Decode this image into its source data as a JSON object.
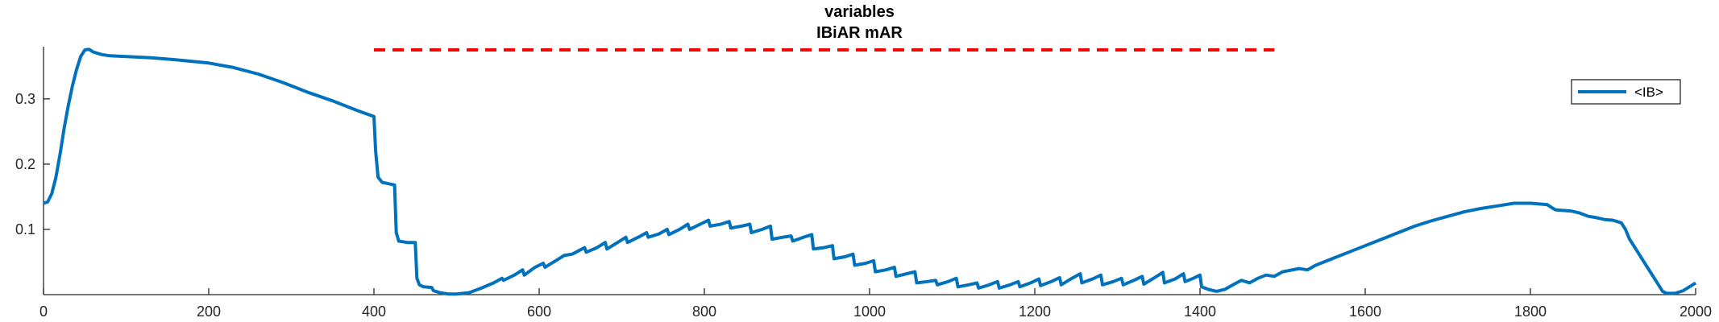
{
  "chart_data": {
    "type": "line",
    "title_lines": [
      "variables",
      "IBiAR mAR"
    ],
    "xlabel": "",
    "ylabel": "",
    "xlim": [
      0,
      2000
    ],
    "ylim": [
      0,
      0.38
    ],
    "x_ticks": [
      0,
      200,
      400,
      600,
      800,
      1000,
      1200,
      1400,
      1600,
      1800,
      2000
    ],
    "y_ticks": [
      0.1,
      0.2,
      0.3
    ],
    "x_tick_labels": [
      "0",
      "200",
      "400",
      "600",
      "800",
      "1000",
      "1200",
      "1400",
      "1600",
      "1800",
      "2000"
    ],
    "y_tick_labels": [
      "0.1",
      "0.2",
      "0.3"
    ],
    "grid": false,
    "legend_position": "top-right",
    "series": [
      {
        "name": "<IB>",
        "color": "#0072BD",
        "style": "solid",
        "points": [
          [
            0,
            0.14
          ],
          [
            5,
            0.142
          ],
          [
            10,
            0.155
          ],
          [
            15,
            0.18
          ],
          [
            20,
            0.215
          ],
          [
            25,
            0.255
          ],
          [
            30,
            0.29
          ],
          [
            35,
            0.32
          ],
          [
            40,
            0.345
          ],
          [
            45,
            0.365
          ],
          [
            50,
            0.375
          ],
          [
            55,
            0.376
          ],
          [
            60,
            0.372
          ],
          [
            70,
            0.368
          ],
          [
            80,
            0.366
          ],
          [
            100,
            0.365
          ],
          [
            130,
            0.363
          ],
          [
            160,
            0.36
          ],
          [
            200,
            0.355
          ],
          [
            230,
            0.348
          ],
          [
            260,
            0.338
          ],
          [
            290,
            0.325
          ],
          [
            320,
            0.31
          ],
          [
            350,
            0.297
          ],
          [
            380,
            0.282
          ],
          [
            400,
            0.273
          ],
          [
            402,
            0.22
          ],
          [
            405,
            0.18
          ],
          [
            410,
            0.172
          ],
          [
            425,
            0.168
          ],
          [
            427,
            0.095
          ],
          [
            430,
            0.082
          ],
          [
            440,
            0.08
          ],
          [
            450,
            0.08
          ],
          [
            452,
            0.025
          ],
          [
            455,
            0.015
          ],
          [
            460,
            0.012
          ],
          [
            470,
            0.011
          ],
          [
            472,
            0.006
          ],
          [
            480,
            0.003
          ],
          [
            490,
            0.001
          ],
          [
            500,
            0.001
          ],
          [
            515,
            0.003
          ],
          [
            530,
            0.01
          ],
          [
            545,
            0.018
          ],
          [
            555,
            0.025
          ],
          [
            557,
            0.022
          ],
          [
            570,
            0.03
          ],
          [
            580,
            0.038
          ],
          [
            582,
            0.03
          ],
          [
            595,
            0.042
          ],
          [
            605,
            0.048
          ],
          [
            607,
            0.042
          ],
          [
            620,
            0.052
          ],
          [
            630,
            0.06
          ],
          [
            640,
            0.062
          ],
          [
            655,
            0.072
          ],
          [
            657,
            0.065
          ],
          [
            670,
            0.072
          ],
          [
            680,
            0.08
          ],
          [
            682,
            0.07
          ],
          [
            695,
            0.08
          ],
          [
            705,
            0.088
          ],
          [
            707,
            0.08
          ],
          [
            720,
            0.088
          ],
          [
            730,
            0.095
          ],
          [
            732,
            0.088
          ],
          [
            745,
            0.093
          ],
          [
            755,
            0.1
          ],
          [
            757,
            0.092
          ],
          [
            770,
            0.1
          ],
          [
            780,
            0.108
          ],
          [
            782,
            0.1
          ],
          [
            795,
            0.108
          ],
          [
            805,
            0.114
          ],
          [
            807,
            0.105
          ],
          [
            820,
            0.108
          ],
          [
            830,
            0.112
          ],
          [
            832,
            0.102
          ],
          [
            845,
            0.105
          ],
          [
            855,
            0.108
          ],
          [
            857,
            0.095
          ],
          [
            870,
            0.1
          ],
          [
            880,
            0.105
          ],
          [
            882,
            0.085
          ],
          [
            895,
            0.088
          ],
          [
            905,
            0.09
          ],
          [
            907,
            0.082
          ],
          [
            920,
            0.088
          ],
          [
            930,
            0.092
          ],
          [
            932,
            0.07
          ],
          [
            945,
            0.072
          ],
          [
            955,
            0.075
          ],
          [
            957,
            0.055
          ],
          [
            970,
            0.058
          ],
          [
            980,
            0.062
          ],
          [
            982,
            0.045
          ],
          [
            995,
            0.048
          ],
          [
            1005,
            0.052
          ],
          [
            1007,
            0.035
          ],
          [
            1020,
            0.038
          ],
          [
            1030,
            0.042
          ],
          [
            1032,
            0.028
          ],
          [
            1045,
            0.032
          ],
          [
            1055,
            0.035
          ],
          [
            1057,
            0.018
          ],
          [
            1070,
            0.02
          ],
          [
            1080,
            0.022
          ],
          [
            1082,
            0.015
          ],
          [
            1095,
            0.02
          ],
          [
            1105,
            0.025
          ],
          [
            1107,
            0.012
          ],
          [
            1120,
            0.015
          ],
          [
            1130,
            0.018
          ],
          [
            1132,
            0.01
          ],
          [
            1145,
            0.015
          ],
          [
            1155,
            0.02
          ],
          [
            1157,
            0.01
          ],
          [
            1170,
            0.015
          ],
          [
            1180,
            0.02
          ],
          [
            1182,
            0.012
          ],
          [
            1195,
            0.018
          ],
          [
            1205,
            0.024
          ],
          [
            1207,
            0.014
          ],
          [
            1220,
            0.02
          ],
          [
            1230,
            0.026
          ],
          [
            1232,
            0.015
          ],
          [
            1245,
            0.025
          ],
          [
            1255,
            0.032
          ],
          [
            1257,
            0.018
          ],
          [
            1270,
            0.024
          ],
          [
            1280,
            0.03
          ],
          [
            1282,
            0.015
          ],
          [
            1295,
            0.02
          ],
          [
            1305,
            0.025
          ],
          [
            1307,
            0.015
          ],
          [
            1320,
            0.022
          ],
          [
            1330,
            0.028
          ],
          [
            1332,
            0.016
          ],
          [
            1345,
            0.026
          ],
          [
            1355,
            0.034
          ],
          [
            1357,
            0.018
          ],
          [
            1370,
            0.024
          ],
          [
            1380,
            0.032
          ],
          [
            1382,
            0.02
          ],
          [
            1392,
            0.025
          ],
          [
            1400,
            0.03
          ],
          [
            1402,
            0.012
          ],
          [
            1410,
            0.008
          ],
          [
            1420,
            0.005
          ],
          [
            1430,
            0.008
          ],
          [
            1440,
            0.015
          ],
          [
            1450,
            0.022
          ],
          [
            1460,
            0.018
          ],
          [
            1470,
            0.025
          ],
          [
            1480,
            0.03
          ],
          [
            1490,
            0.028
          ],
          [
            1500,
            0.035
          ],
          [
            1520,
            0.04
          ],
          [
            1530,
            0.038
          ],
          [
            1540,
            0.045
          ],
          [
            1560,
            0.055
          ],
          [
            1580,
            0.065
          ],
          [
            1600,
            0.075
          ],
          [
            1620,
            0.085
          ],
          [
            1640,
            0.095
          ],
          [
            1660,
            0.105
          ],
          [
            1680,
            0.113
          ],
          [
            1700,
            0.12
          ],
          [
            1720,
            0.127
          ],
          [
            1740,
            0.132
          ],
          [
            1760,
            0.136
          ],
          [
            1780,
            0.14
          ],
          [
            1800,
            0.14
          ],
          [
            1820,
            0.138
          ],
          [
            1830,
            0.13
          ],
          [
            1850,
            0.128
          ],
          [
            1860,
            0.125
          ],
          [
            1870,
            0.12
          ],
          [
            1880,
            0.118
          ],
          [
            1890,
            0.115
          ],
          [
            1900,
            0.114
          ],
          [
            1910,
            0.11
          ],
          [
            1915,
            0.1
          ],
          [
            1920,
            0.085
          ],
          [
            1930,
            0.065
          ],
          [
            1940,
            0.045
          ],
          [
            1950,
            0.025
          ],
          [
            1955,
            0.015
          ],
          [
            1960,
            0.005
          ],
          [
            1965,
            0.002
          ],
          [
            1975,
            0.002
          ],
          [
            1985,
            0.006
          ],
          [
            1995,
            0.014
          ],
          [
            2000,
            0.018
          ]
        ]
      }
    ],
    "reference_lines": [
      {
        "x_start": 400,
        "x_end": 1490,
        "y": 0.375,
        "color": "#FF0000",
        "style": "dashed"
      }
    ]
  }
}
